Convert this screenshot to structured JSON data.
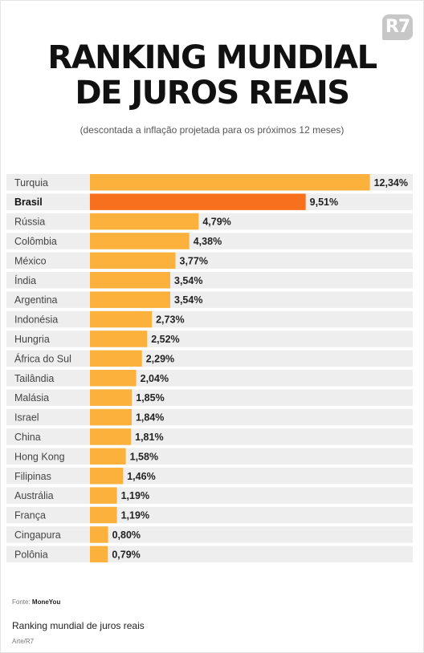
{
  "brand": {
    "logo_text": "R7"
  },
  "header": {
    "title_line1": "RANKING MUNDIAL",
    "title_line2": "DE JUROS REAIS",
    "subtitle": "(descontada a inflação projetada para os próximos 12 meses)"
  },
  "footer": {
    "source_label": "Fonte:",
    "source_name": "MoneYou",
    "caption": "Ranking mundial de juros reais",
    "credit": "Arte/R7"
  },
  "colors": {
    "bar": "#fbb13c",
    "bar_highlight": "#f7701d",
    "row_band": "#eeeeee"
  },
  "chart_data": {
    "type": "bar",
    "orientation": "horizontal",
    "categories": [
      "Turquia",
      "Brasil",
      "Rússia",
      "Colômbia",
      "México",
      "Índia",
      "Argentina",
      "Indonésia",
      "Hungria",
      "África do Sul",
      "Tailândia",
      "Malásia",
      "Israel",
      "China",
      "Hong Kong",
      "Filipinas",
      "Austrália",
      "França",
      "Cingapura",
      "Polônia"
    ],
    "values": [
      12.34,
      9.51,
      4.79,
      4.38,
      3.77,
      3.54,
      3.54,
      2.73,
      2.52,
      2.29,
      2.04,
      1.85,
      1.84,
      1.81,
      1.58,
      1.46,
      1.19,
      1.19,
      0.8,
      0.79
    ],
    "value_labels": [
      "12,34%",
      "9,51%",
      "4,79%",
      "4,38%",
      "3,77%",
      "3,54%",
      "3,54%",
      "2,73%",
      "2,52%",
      "2,29%",
      "2,04%",
      "1,85%",
      "1,84%",
      "1,81%",
      "1,58%",
      "1,46%",
      "1,19%",
      "1,19%",
      "0,80%",
      "0,79%"
    ],
    "highlight": "Brasil",
    "xlim": [
      0,
      14.23
    ],
    "grid": false,
    "legend": "none"
  }
}
